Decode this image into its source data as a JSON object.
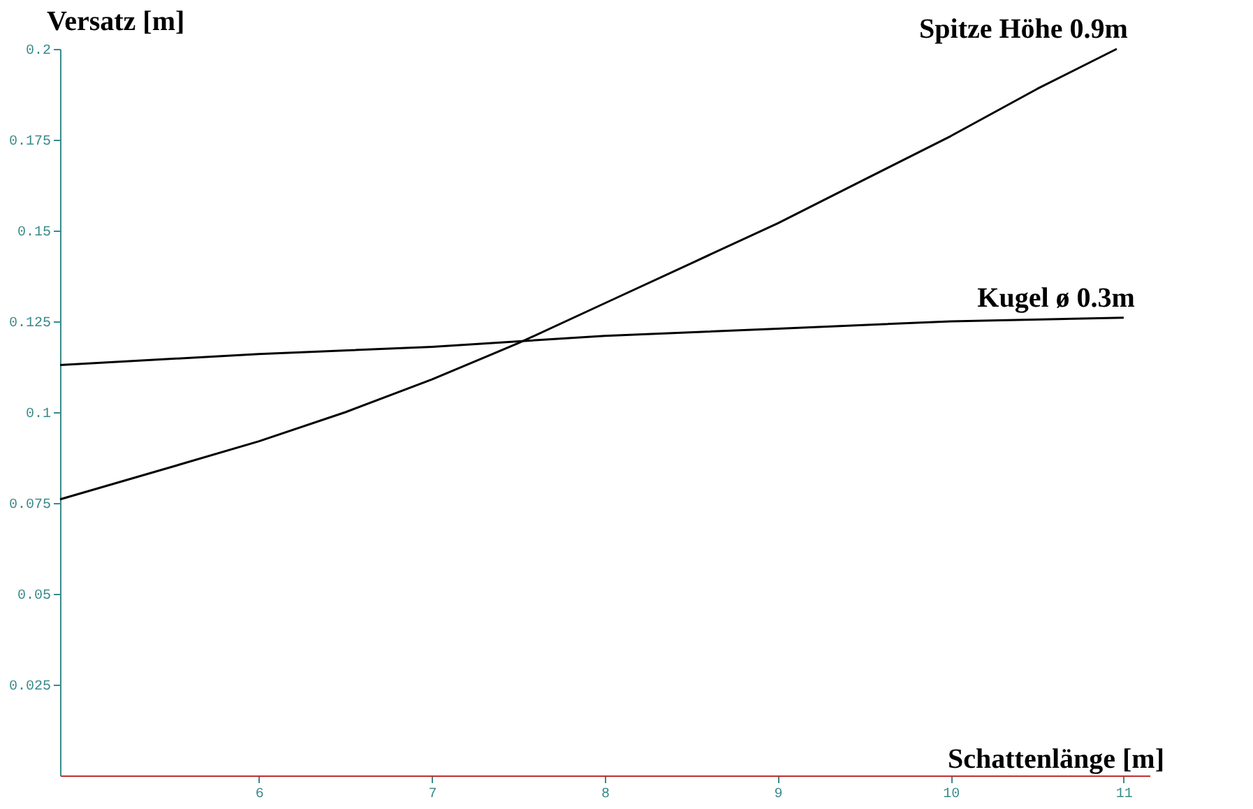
{
  "chart_data": {
    "type": "line",
    "xlabel": "Schattenlänge [m]",
    "ylabel": "Versatz [m]",
    "xlim": [
      4.85,
      11.15
    ],
    "ylim": [
      0,
      0.2
    ],
    "xticks": [
      6,
      7,
      8,
      9,
      10,
      11
    ],
    "yticks": [
      0.025,
      0.05,
      0.075,
      0.1,
      0.125,
      0.15,
      0.175,
      0.2
    ],
    "grid": false,
    "marker": "none",
    "line_style": "solid",
    "series": [
      {
        "name": "Spitze Höhe 0.9m",
        "color": "#000000",
        "x": [
          4.85,
          5.5,
          6,
          6.5,
          7,
          7.5,
          8,
          8.5,
          9,
          9.5,
          10,
          10.5,
          10.96
        ],
        "values": [
          0.076,
          0.085,
          0.092,
          0.1,
          0.109,
          0.119,
          0.13,
          0.141,
          0.152,
          0.164,
          0.176,
          0.189,
          0.2
        ]
      },
      {
        "name": "Kugel ø 0.3m",
        "color": "#000000",
        "x": [
          4.85,
          6,
          7,
          8,
          9,
          10,
          11
        ],
        "values": [
          0.113,
          0.116,
          0.118,
          0.121,
          0.123,
          0.125,
          0.126
        ]
      }
    ]
  }
}
